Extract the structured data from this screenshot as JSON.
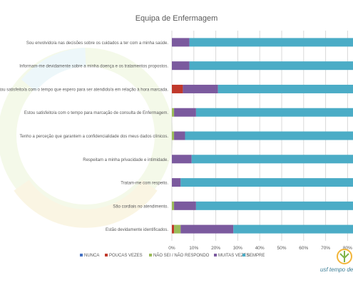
{
  "chart_data": {
    "type": "bar",
    "stacked": true,
    "orientation": "horizontal",
    "title": "Equipa de Enfermagem",
    "categories": [
      "Sou envolvido/a nas decisões sobre os cuidados a ter com a minha saúde.",
      "Informam-me devidamente sobre a minha doença e os tratamentos propostos.",
      "Estou satisfeito/a com o tempo que espero para ser atendido/a em relação à hora marcada.",
      "Estou satisfeito/a com o tempo para marcação de consulta de Enfermagem.",
      "Tenho a perceção que garantem a confidencialidade dos meus dados clínicos.",
      "Respeitam a minha privacidade e intimidade.",
      "Tratam-me com respeito.",
      "São cordiais no atendimento.",
      "Estão devidamente identificados."
    ],
    "series": [
      {
        "name": "NUNCA",
        "color": "#4472c4",
        "values": [
          0,
          0,
          0,
          0,
          0,
          0,
          0,
          0,
          0
        ]
      },
      {
        "name": "POUCAS VEZES",
        "color": "#c0392b",
        "values": [
          0,
          0,
          5,
          0,
          0,
          0,
          0,
          0,
          1
        ]
      },
      {
        "name": "NÃO SEI / NÃO RESPONDO",
        "color": "#9bbb59",
        "values": [
          0,
          0,
          0,
          1,
          1,
          0,
          0,
          1,
          3
        ]
      },
      {
        "name": "MUITAS VEZES",
        "color": "#7b5a9e",
        "values": [
          8,
          8,
          16,
          10,
          5,
          9,
          4,
          10,
          24
        ]
      },
      {
        "name": "SEMPRE",
        "color": "#4bacc6",
        "values": [
          92,
          92,
          79,
          89,
          94,
          91,
          96,
          89,
          72
        ]
      }
    ],
    "xlim": [
      0,
      100
    ],
    "xticks": [
      "0%",
      "10%",
      "20%",
      "30%",
      "40%",
      "50%",
      "60%",
      "70%",
      "80%",
      "90%",
      "100%"
    ],
    "grid": true,
    "legend": "bottom"
  },
  "logo": {
    "text": "usf tempo de"
  }
}
